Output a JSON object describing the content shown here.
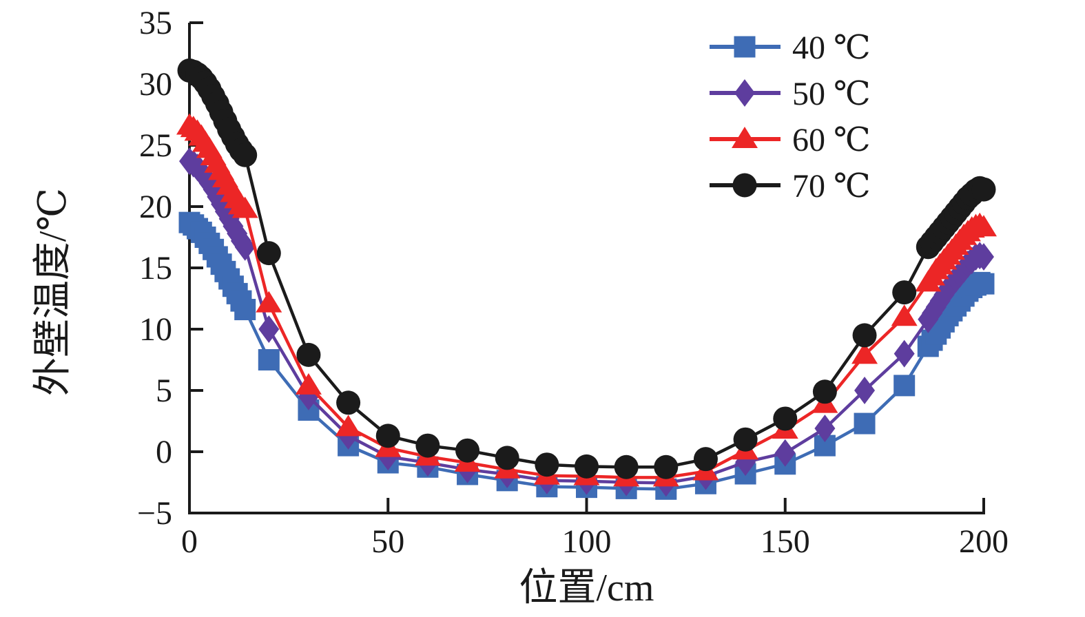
{
  "figure": {
    "background": "#ffffff"
  },
  "chart_data": {
    "type": "line",
    "title": "",
    "xlabel": "位置/cm",
    "ylabel": "外壁温度/℃",
    "xlim": [
      0,
      200
    ],
    "ylim": [
      -5,
      35
    ],
    "xticks": [
      0,
      50,
      100,
      150,
      200
    ],
    "yticks": [
      -5,
      0,
      5,
      10,
      15,
      20,
      25,
      30,
      35
    ],
    "grid": false,
    "legend_position": "top-right-inside",
    "axis_color": "#1a1a1a",
    "x": [
      0,
      1,
      2,
      3,
      4,
      5,
      6,
      7,
      8,
      9,
      10,
      11,
      12,
      13,
      14,
      20,
      30,
      40,
      50,
      60,
      70,
      80,
      90,
      100,
      110,
      120,
      130,
      140,
      150,
      160,
      170,
      180,
      186,
      187,
      188,
      189,
      190,
      191,
      192,
      193,
      194,
      195,
      196,
      197,
      198,
      199,
      200
    ],
    "series": [
      {
        "name": "40 ℃",
        "color": "#3E6CB5",
        "marker": "square",
        "values": [
          18.7,
          18.5,
          18.2,
          17.9,
          17.5,
          17.0,
          16.5,
          15.9,
          15.3,
          14.7,
          14.1,
          13.5,
          12.9,
          12.3,
          11.6,
          7.5,
          3.4,
          0.5,
          -0.9,
          -1.25,
          -1.85,
          -2.35,
          -2.85,
          -2.9,
          -3.0,
          -3.05,
          -2.6,
          -1.8,
          -1.0,
          0.5,
          2.3,
          5.4,
          8.6,
          9.1,
          9.6,
          10.1,
          10.6,
          11.1,
          11.5,
          11.9,
          12.3,
          12.7,
          13.1,
          13.4,
          13.6,
          13.8,
          13.7
        ]
      },
      {
        "name": "50 ℃",
        "color": "#5E3D9E",
        "marker": "diamond",
        "values": [
          23.7,
          23.5,
          23.2,
          22.8,
          22.4,
          21.9,
          21.4,
          20.8,
          20.2,
          19.6,
          19.0,
          18.4,
          17.8,
          17.2,
          16.7,
          10.0,
          4.5,
          1.3,
          -0.4,
          -0.9,
          -1.45,
          -1.85,
          -2.35,
          -2.4,
          -2.5,
          -2.55,
          -2.0,
          -0.85,
          -0.1,
          1.9,
          5.0,
          8.0,
          10.8,
          11.3,
          11.8,
          12.3,
          12.8,
          13.3,
          13.7,
          14.1,
          14.5,
          14.9,
          15.3,
          15.6,
          15.9,
          16.0,
          15.9
        ]
      },
      {
        "name": "60 ℃",
        "color": "#EC2626",
        "marker": "triangle",
        "values": [
          26.6,
          26.4,
          26.1,
          25.7,
          25.2,
          24.7,
          24.1,
          23.5,
          22.9,
          22.3,
          21.7,
          21.1,
          20.6,
          20.1,
          19.8,
          12.1,
          5.4,
          2.0,
          0.3,
          -0.4,
          -0.9,
          -1.45,
          -1.95,
          -2.0,
          -2.1,
          -2.1,
          -1.6,
          0.1,
          1.8,
          3.9,
          7.9,
          11.0,
          13.8,
          14.3,
          14.8,
          15.2,
          15.6,
          16.0,
          16.4,
          16.8,
          17.2,
          17.6,
          17.9,
          18.2,
          18.4,
          18.5,
          18.3
        ]
      },
      {
        "name": "70 ℃",
        "color": "#1B1B1B",
        "marker": "circle",
        "values": [
          31.1,
          31.0,
          30.8,
          30.5,
          30.1,
          29.6,
          29.0,
          28.4,
          27.7,
          27.0,
          26.3,
          25.7,
          25.1,
          24.6,
          24.2,
          16.2,
          7.9,
          4.0,
          1.3,
          0.5,
          0.1,
          -0.5,
          -1.05,
          -1.2,
          -1.25,
          -1.25,
          -0.6,
          1.0,
          2.7,
          4.9,
          9.5,
          13.0,
          16.7,
          17.1,
          17.5,
          17.9,
          18.3,
          18.7,
          19.1,
          19.5,
          19.9,
          20.3,
          20.7,
          21.0,
          21.3,
          21.5,
          21.4
        ]
      }
    ]
  }
}
